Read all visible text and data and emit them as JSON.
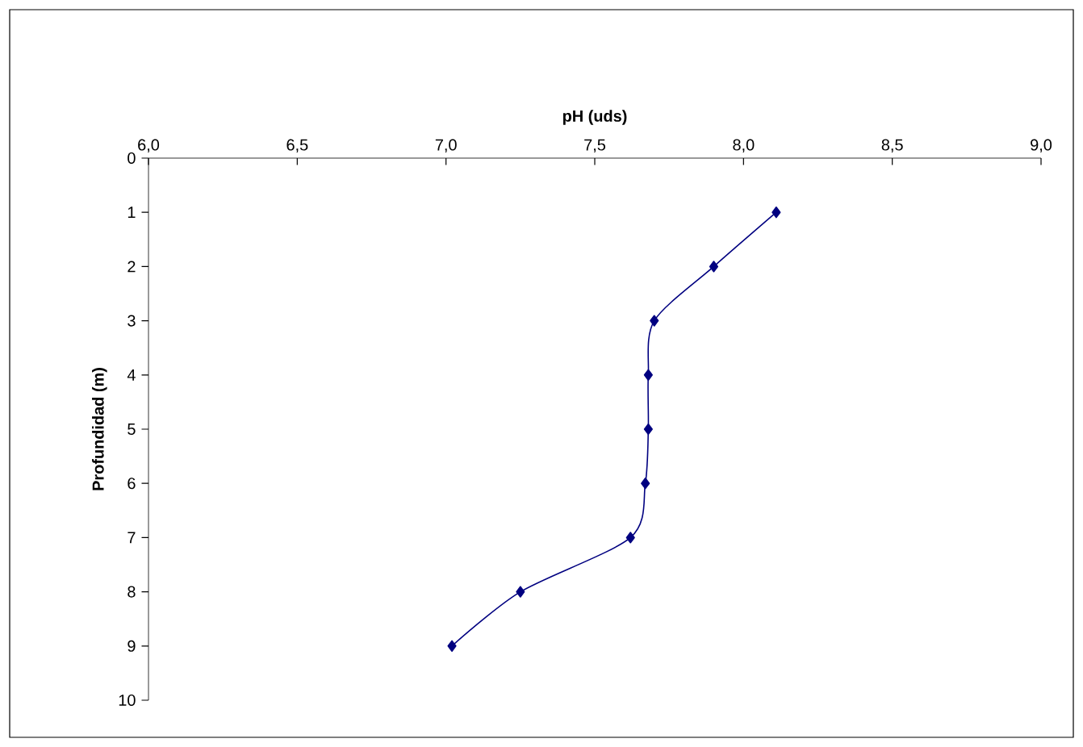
{
  "chart_data": {
    "type": "line",
    "xlabel": "pH (uds)",
    "ylabel": "Profundidad (m)",
    "x": [
      8.11,
      7.9,
      7.7,
      7.68,
      7.68,
      7.67,
      7.62,
      7.25,
      7.02
    ],
    "series": [
      {
        "color": "#000080",
        "values": [
          1,
          2,
          3,
          4,
          5,
          6,
          7,
          8,
          9
        ]
      }
    ],
    "xlim": [
      6,
      9
    ],
    "xticks": [
      {
        "value": 6,
        "label": "6,0"
      },
      {
        "value": 6.5,
        "label": "6,5"
      },
      {
        "value": 7,
        "label": "7,0"
      },
      {
        "value": 7.5,
        "label": "7,5"
      },
      {
        "value": 8,
        "label": "8,0"
      },
      {
        "value": 8.5,
        "label": "8,5"
      },
      {
        "value": 9,
        "label": "9,0"
      }
    ],
    "ylim": [
      10,
      0
    ],
    "yticks": [
      0,
      1,
      2,
      3,
      4,
      5,
      6,
      7,
      8,
      9,
      10
    ],
    "marker": "diamond",
    "line_style": "solid"
  }
}
